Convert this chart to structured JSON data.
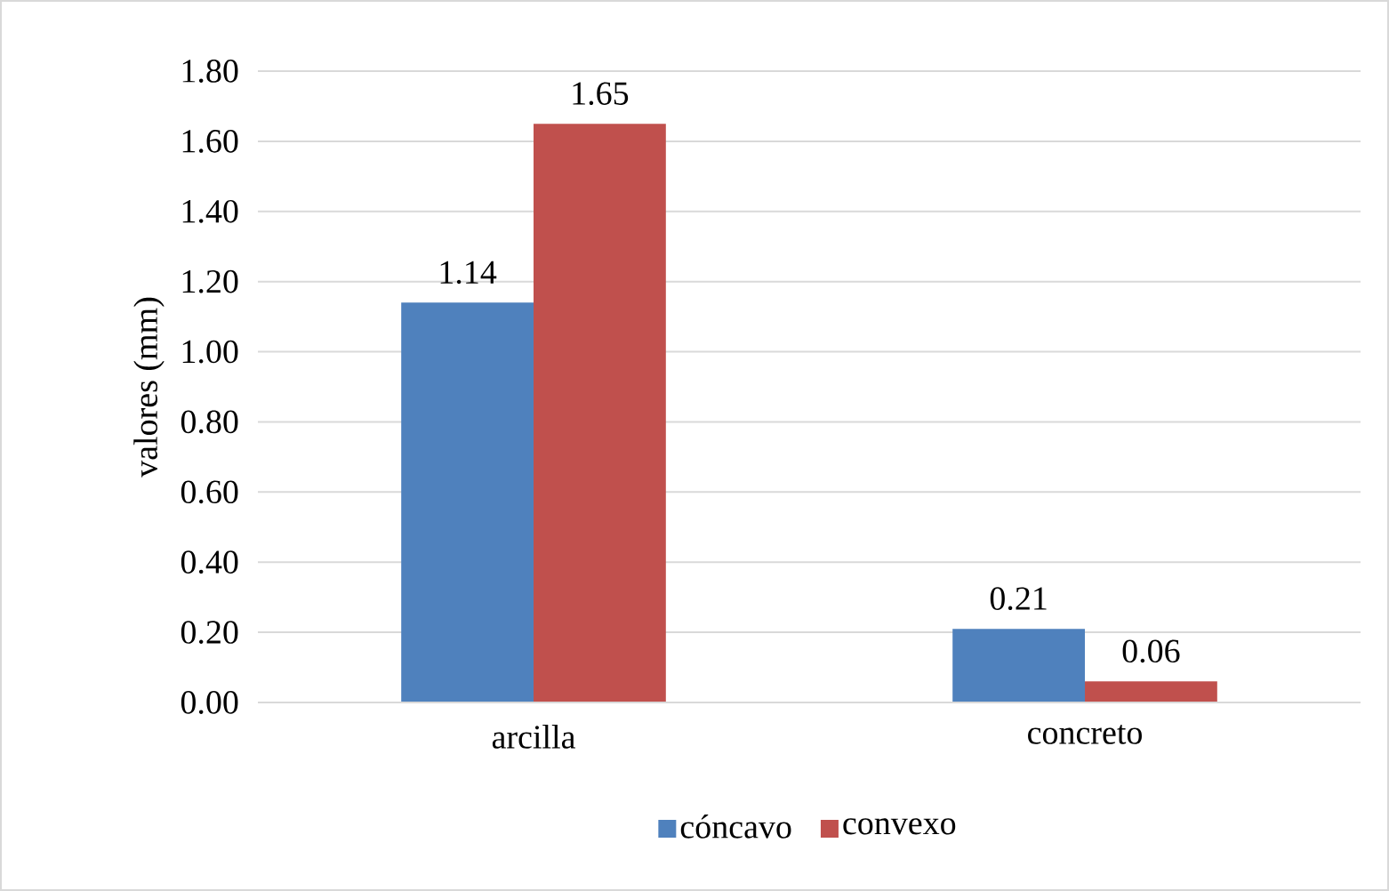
{
  "chart_data": {
    "type": "bar",
    "ylabel": "valores (mm)",
    "categories": [
      "arcilla",
      "concreto"
    ],
    "series": [
      {
        "name": "cóncavo",
        "color": "#4f81bd",
        "values": [
          1.14,
          0.21
        ],
        "value_labels": [
          "1.14",
          "0.21"
        ]
      },
      {
        "name": "convexo",
        "color": "#c0504d",
        "values": [
          1.65,
          0.06
        ],
        "value_labels": [
          "1.65",
          "0.06"
        ]
      }
    ],
    "ylim": [
      0,
      1.8
    ],
    "yticks": [
      {
        "value": 0,
        "label": "0.00"
      },
      {
        "value": 0.2,
        "label": "0.20"
      },
      {
        "value": 0.4,
        "label": "0.40"
      },
      {
        "value": 0.6,
        "label": "0.60"
      },
      {
        "value": 0.8,
        "label": "0.80"
      },
      {
        "value": 1.0,
        "label": "1.00"
      },
      {
        "value": 1.2,
        "label": "1.20"
      },
      {
        "value": 1.4,
        "label": "1.40"
      },
      {
        "value": 1.6,
        "label": "1.60"
      },
      {
        "value": 1.8,
        "label": "1.80"
      }
    ],
    "grid": "y",
    "legend": "bottom"
  }
}
